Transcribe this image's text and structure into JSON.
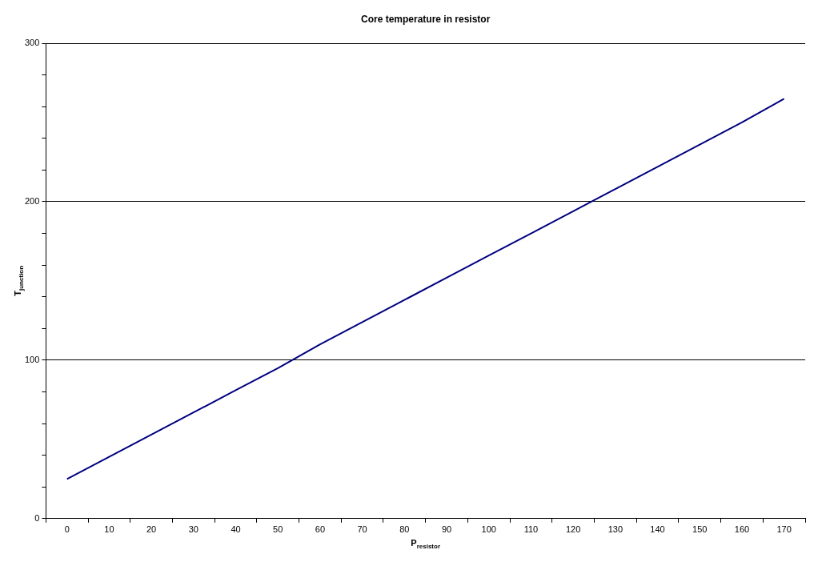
{
  "chart_data": {
    "type": "line",
    "title": "Core temperature in resistor",
    "xlabel": "P$_{resistor}$",
    "ylabel": "T$_{junction}$",
    "categories": [
      "0",
      "10",
      "20",
      "30",
      "40",
      "50",
      "60",
      "70",
      "80",
      "90",
      "100",
      "110",
      "120",
      "130",
      "140",
      "150",
      "160",
      "170"
    ],
    "series": [
      {
        "color": "#000080",
        "values": [
          25,
          39,
          53,
          67,
          81,
          95,
          110,
          124,
          138,
          152,
          166,
          180,
          194,
          208,
          222,
          236,
          250,
          265
        ]
      }
    ],
    "ylim": [
      0,
      300
    ],
    "yticks": [
      0,
      {
        "value": 20,
        "label": null
      },
      {
        "value": 40,
        "label": null
      },
      {
        "value": 60,
        "label": null
      },
      {
        "value": 80,
        "label": null
      },
      100,
      {
        "value": 120,
        "label": null
      },
      {
        "value": 140,
        "label": null
      },
      {
        "value": 160,
        "label": null
      },
      {
        "value": 180,
        "label": null
      },
      200,
      {
        "value": 220,
        "label": null
      },
      {
        "value": 240,
        "label": null
      },
      {
        "value": 260,
        "label": null
      },
      {
        "value": 280,
        "label": null
      },
      300
    ],
    "grid": "y",
    "legend": false,
    "marker": "none",
    "line_style": "solid"
  }
}
